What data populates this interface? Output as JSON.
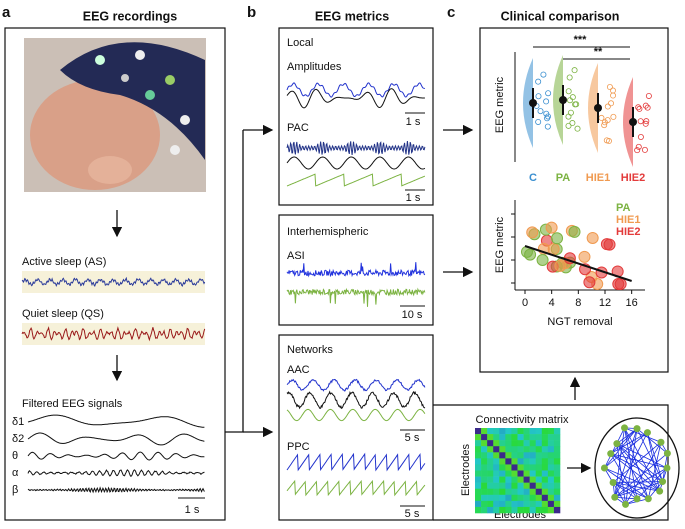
{
  "panel_a": {
    "letter": "a",
    "title": "EEG recordings",
    "active_sleep": "Active sleep (AS)",
    "quiet_sleep": "Quiet sleep (QS)",
    "filtered": "Filtered EEG signals",
    "bands": [
      "δ1",
      "δ2",
      "θ",
      "α",
      "β"
    ],
    "scale": "1 s"
  },
  "panel_b": {
    "letter": "b",
    "title": "EEG metrics",
    "local": {
      "title": "Local",
      "amplitudes": "Amplitudes",
      "amplitudes_scale": "1 s",
      "pac": "PAC",
      "pac_scale": "1 s"
    },
    "interhemispheric": {
      "title": "Interhemispheric",
      "asi": "ASI",
      "scale": "10 s"
    },
    "networks": {
      "title": "Networks",
      "aac": "AAC",
      "aac_scale": "5 s",
      "ppc": "PPC",
      "ppc_scale": "5 s",
      "matrix_title": "Connectivity matrix",
      "matrix_ylabel": "Electrodes",
      "matrix_xlabel": "Electrodes"
    }
  },
  "panel_c": {
    "letter": "c",
    "title": "Clinical comparison",
    "violin": {
      "ylabel": "EEG metric",
      "groups": [
        {
          "name": "C",
          "color": "#3a8fd0"
        },
        {
          "name": "PA",
          "color": "#7cb342"
        },
        {
          "name": "HIE1",
          "color": "#f09a50"
        },
        {
          "name": "HIE2",
          "color": "#e33b3b"
        }
      ],
      "significance": [
        "***",
        "**"
      ]
    },
    "scatter": {
      "ylabel": "EEG metric",
      "xlabel": "NGT removal",
      "xlim": [
        -1.5,
        18
      ],
      "xticks": [
        0,
        4,
        8,
        12,
        16
      ],
      "legend": [
        {
          "name": "PA",
          "color": "#7cb342"
        },
        {
          "name": "HIE1",
          "color": "#f09a50"
        },
        {
          "name": "HIE2",
          "color": "#e33b3b"
        }
      ]
    }
  }
}
